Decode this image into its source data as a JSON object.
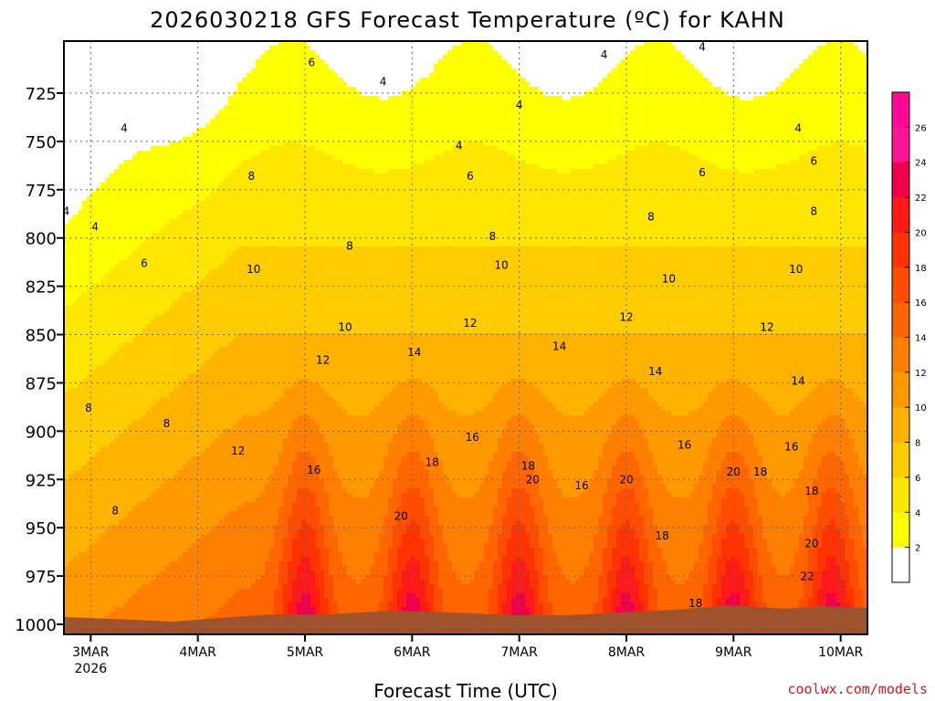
{
  "chart_data": {
    "type": "heatmap",
    "title": "2026030218 GFS Forecast Temperature (ºC) for KAHN",
    "xlabel": "Forecast Time (UTC)",
    "ylabel": "",
    "credit": "coolwx.com/models",
    "x_ticks": [
      {
        "label": "3MAR",
        "sublabel": "2026",
        "hour": 6
      },
      {
        "label": "4MAR",
        "sublabel": "",
        "hour": 30
      },
      {
        "label": "5MAR",
        "sublabel": "",
        "hour": 54
      },
      {
        "label": "6MAR",
        "sublabel": "",
        "hour": 78
      },
      {
        "label": "7MAR",
        "sublabel": "",
        "hour": 102
      },
      {
        "label": "8MAR",
        "sublabel": "",
        "hour": 126
      },
      {
        "label": "9MAR",
        "sublabel": "",
        "hour": 150
      },
      {
        "label": "10MAR",
        "sublabel": "",
        "hour": 174
      }
    ],
    "xlim": [
      0,
      180
    ],
    "y_ticks": [
      725,
      750,
      775,
      800,
      825,
      850,
      875,
      900,
      925,
      950,
      975,
      1000
    ],
    "ylim": [
      1005,
      700
    ],
    "colorbar": {
      "levels": [
        0,
        2,
        4,
        6,
        8,
        10,
        12,
        14,
        16,
        18,
        20,
        22,
        24,
        26,
        28
      ],
      "tick_labels": [
        "2",
        "4",
        "6",
        "8",
        "10",
        "12",
        "14",
        "16",
        "18",
        "20",
        "22",
        "24",
        "26"
      ],
      "colors": [
        "#ffffff",
        "#ffff00",
        "#ffe600",
        "#ffcc00",
        "#ffb200",
        "#ff9900",
        "#ff8000",
        "#ff6600",
        "#ff4d00",
        "#ff3300",
        "#ff1a1a",
        "#f0004b",
        "#ff1493",
        "#ff0a96"
      ]
    },
    "ground_color": "#a0522d",
    "contour_labels": [
      {
        "text": "4",
        "hour": 0.5,
        "hpa": 788
      },
      {
        "text": "4",
        "hour": 7,
        "hpa": 796
      },
      {
        "text": "4",
        "hour": 13.5,
        "hpa": 745
      },
      {
        "text": "6",
        "hour": 18,
        "hpa": 815
      },
      {
        "text": "8",
        "hour": 5.5,
        "hpa": 890
      },
      {
        "text": "8",
        "hour": 23,
        "hpa": 898
      },
      {
        "text": "8",
        "hour": 11.5,
        "hpa": 943
      },
      {
        "text": "6",
        "hour": 55.5,
        "hpa": 711
      },
      {
        "text": "8",
        "hour": 42,
        "hpa": 770
      },
      {
        "text": "10",
        "hour": 42.5,
        "hpa": 818
      },
      {
        "text": "12",
        "hour": 39,
        "hpa": 912
      },
      {
        "text": "16",
        "hour": 56,
        "hpa": 922
      },
      {
        "text": "10",
        "hour": 63,
        "hpa": 848
      },
      {
        "text": "12",
        "hour": 58,
        "hpa": 865
      },
      {
        "text": "8",
        "hour": 64,
        "hpa": 806
      },
      {
        "text": "4",
        "hour": 71.5,
        "hpa": 721
      },
      {
        "text": "14",
        "hour": 78.5,
        "hpa": 861
      },
      {
        "text": "18",
        "hour": 82.5,
        "hpa": 918
      },
      {
        "text": "20",
        "hour": 75.5,
        "hpa": 946
      },
      {
        "text": "4",
        "hour": 88.5,
        "hpa": 754
      },
      {
        "text": "6",
        "hour": 91,
        "hpa": 770
      },
      {
        "text": "8",
        "hour": 96,
        "hpa": 801
      },
      {
        "text": "12",
        "hour": 91,
        "hpa": 846
      },
      {
        "text": "10",
        "hour": 98,
        "hpa": 816
      },
      {
        "text": "16",
        "hour": 91.5,
        "hpa": 905
      },
      {
        "text": "18",
        "hour": 104,
        "hpa": 920
      },
      {
        "text": "20",
        "hour": 105,
        "hpa": 927
      },
      {
        "text": "4",
        "hour": 102,
        "hpa": 733
      },
      {
        "text": "14",
        "hour": 111,
        "hpa": 858
      },
      {
        "text": "16",
        "hour": 116,
        "hpa": 930
      },
      {
        "text": "4",
        "hour": 121,
        "hpa": 707
      },
      {
        "text": "8",
        "hour": 131.5,
        "hpa": 791
      },
      {
        "text": "10",
        "hour": 135.5,
        "hpa": 823
      },
      {
        "text": "12",
        "hour": 126,
        "hpa": 843
      },
      {
        "text": "14",
        "hour": 132.5,
        "hpa": 871
      },
      {
        "text": "16",
        "hour": 139,
        "hpa": 909
      },
      {
        "text": "20",
        "hour": 126,
        "hpa": 927
      },
      {
        "text": "18",
        "hour": 134,
        "hpa": 956
      },
      {
        "text": "18",
        "hour": 141.5,
        "hpa": 991
      },
      {
        "text": "4",
        "hour": 143,
        "hpa": 703
      },
      {
        "text": "6",
        "hour": 143,
        "hpa": 768
      },
      {
        "text": "12",
        "hour": 157.5,
        "hpa": 848
      },
      {
        "text": "10",
        "hour": 164,
        "hpa": 818
      },
      {
        "text": "14",
        "hour": 164.5,
        "hpa": 876
      },
      {
        "text": "16",
        "hour": 163,
        "hpa": 910
      },
      {
        "text": "20",
        "hour": 150,
        "hpa": 923
      },
      {
        "text": "18",
        "hour": 156,
        "hpa": 923
      },
      {
        "text": "4",
        "hour": 164.5,
        "hpa": 745
      },
      {
        "text": "6",
        "hour": 168,
        "hpa": 762
      },
      {
        "text": "8",
        "hour": 168,
        "hpa": 788
      },
      {
        "text": "18",
        "hour": 167.5,
        "hpa": 933
      },
      {
        "text": "20",
        "hour": 167.5,
        "hpa": 960
      },
      {
        "text": "22",
        "hour": 166.5,
        "hpa": 977
      }
    ]
  }
}
